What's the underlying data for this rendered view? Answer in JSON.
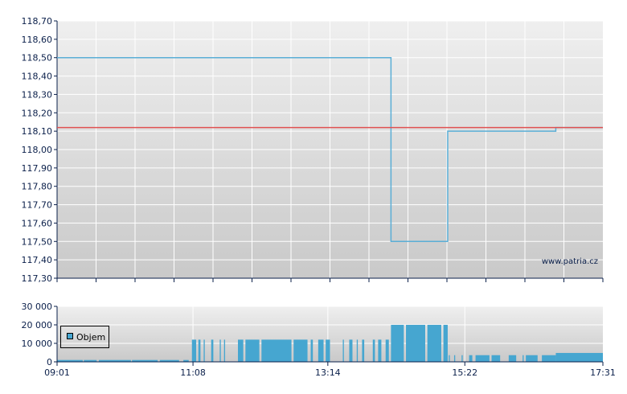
{
  "chart_data": [
    {
      "type": "line",
      "ylim": [
        117.3,
        118.7
      ],
      "yticks": [
        "117,30",
        "117,40",
        "117,50",
        "117,60",
        "117,70",
        "117,80",
        "117,90",
        "118,00",
        "118,10",
        "118,20",
        "118,30",
        "118,40",
        "118,50",
        "118,60",
        "118,70"
      ],
      "xlim": [
        "09:01",
        "17:31"
      ],
      "grid": true,
      "series": [
        {
          "color": "#5aaed6",
          "points": [
            [
              "09:01",
              118.5
            ],
            [
              "14:13",
              118.5
            ],
            [
              "14:13",
              117.5
            ],
            [
              "15:06",
              117.5
            ],
            [
              "15:06",
              118.1
            ],
            [
              "16:47",
              118.1
            ],
            [
              "16:47",
              118.12
            ],
            [
              "17:31",
              118.12
            ]
          ]
        },
        {
          "color": "#e05050",
          "points": [
            [
              "09:01",
              118.12
            ],
            [
              "17:31",
              118.12
            ]
          ]
        }
      ],
      "watermark": "www.patria.cz"
    },
    {
      "type": "bar",
      "ylim": [
        0,
        30000
      ],
      "yticks": [
        "0",
        "10 000",
        "20 000",
        "30 000"
      ],
      "xticks": [
        "09:01",
        "11:08",
        "13:14",
        "15:22",
        "17:31"
      ],
      "legend": {
        "label": "Objem",
        "position": "left"
      },
      "color": "#46a6d0",
      "series": [
        {
          "name": "Objem",
          "bars": [
            [
              "09:01",
              "09:25",
              1000
            ],
            [
              "09:26",
              "09:38",
              1000
            ],
            [
              "09:40",
              "10:10",
              1000
            ],
            [
              "10:11",
              "10:35",
              1000
            ],
            [
              "10:37",
              "10:55",
              1000
            ],
            [
              "10:59",
              "11:04",
              1000
            ],
            [
              "11:07",
              "11:11",
              12000
            ],
            [
              "11:13",
              "11:15",
              12000
            ],
            [
              "11:18",
              "11:19",
              12000
            ],
            [
              "11:25",
              "11:27",
              12000
            ],
            [
              "11:33",
              "11:34",
              12000
            ],
            [
              "11:37",
              "11:38",
              12000
            ],
            [
              "11:50",
              "11:55",
              12000
            ],
            [
              "11:57",
              "12:10",
              12000
            ],
            [
              "12:12",
              "12:40",
              12000
            ],
            [
              "12:42",
              "12:55",
              12000
            ],
            [
              "12:58",
              "13:00",
              12000
            ],
            [
              "13:05",
              "13:10",
              12000
            ],
            [
              "13:12",
              "13:16",
              12000
            ],
            [
              "13:28",
              "13:29",
              12000
            ],
            [
              "13:34",
              "13:37",
              12000
            ],
            [
              "13:41",
              "13:42",
              12000
            ],
            [
              "13:46",
              "13:48",
              12000
            ],
            [
              "13:56",
              "13:58",
              12000
            ],
            [
              "14:01",
              "14:04",
              12000
            ],
            [
              "14:08",
              "14:11",
              12000
            ],
            [
              "14:13",
              "14:25",
              20000
            ],
            [
              "14:27",
              "14:45",
              20000
            ],
            [
              "14:47",
              "15:00",
              20000
            ],
            [
              "15:02",
              "15:06",
              20000
            ],
            [
              "15:07",
              "15:08",
              3600
            ],
            [
              "15:12",
              "15:13",
              3600
            ],
            [
              "15:19",
              "15:20",
              3600
            ],
            [
              "15:26",
              "15:29",
              3600
            ],
            [
              "15:32",
              "15:45",
              3600
            ],
            [
              "15:47",
              "15:55",
              3600
            ],
            [
              "16:03",
              "16:10",
              3600
            ],
            [
              "16:16",
              "16:17",
              3600
            ],
            [
              "16:19",
              "16:30",
              3600
            ],
            [
              "16:34",
              "16:47",
              3600
            ],
            [
              "16:47",
              "17:31",
              4800
            ]
          ]
        }
      ]
    }
  ]
}
